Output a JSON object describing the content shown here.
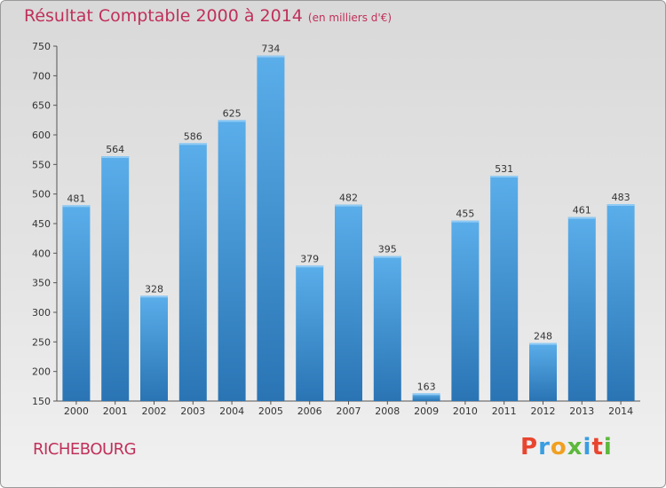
{
  "title": "Résultat Comptable 2000 à 2014",
  "subtitle": "(en milliers d'€)",
  "commune": "RICHEBOURG",
  "brand": "Proxiti",
  "colors": {
    "title": "#c0305a",
    "bar_top": "#5aaeea",
    "bar_bottom": "#2a74b4",
    "brand_letters": [
      "#e8452f",
      "#3a9de0",
      "#f0a020",
      "#5cb83c",
      "#3a9de0",
      "#e8452f",
      "#5cb83c"
    ]
  },
  "chart_data": {
    "type": "bar",
    "title": "Résultat Comptable 2000 à 2014",
    "xlabel": "",
    "ylabel": "",
    "categories": [
      "2000",
      "2001",
      "2002",
      "2003",
      "2004",
      "2005",
      "2006",
      "2007",
      "2008",
      "2009",
      "2010",
      "2011",
      "2012",
      "2013",
      "2014"
    ],
    "values": [
      481,
      564,
      328,
      586,
      625,
      734,
      379,
      482,
      395,
      163,
      455,
      531,
      248,
      461,
      483
    ],
    "ylim": [
      150,
      750
    ],
    "yticks": [
      150,
      200,
      250,
      300,
      350,
      400,
      450,
      500,
      550,
      600,
      650,
      700,
      750
    ],
    "grid": false,
    "legend": "none"
  }
}
